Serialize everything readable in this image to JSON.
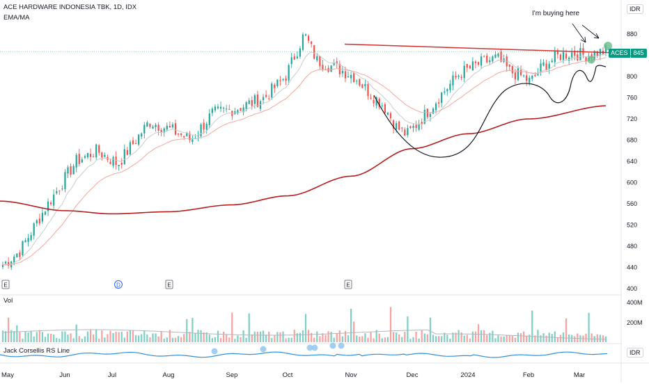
{
  "chart_data": {
    "type": "candlestick",
    "title": "ACE HARDWARE INDONESIA TBK, 1D, IDX",
    "indicator_label": "EMA/MA",
    "currency": "IDR",
    "price_axis": {
      "min": 400,
      "max": 880,
      "ticks": [
        880,
        840,
        800,
        760,
        720,
        680,
        640,
        600,
        560,
        520,
        480,
        440,
        400
      ]
    },
    "ticker_tag": {
      "symbol": "ACES",
      "price": "845"
    },
    "x_ticks": [
      "May",
      "Jun",
      "Jul",
      "Aug",
      "Sep",
      "Oct",
      "Nov",
      "Dec",
      "2024",
      "Feb",
      "Mar"
    ],
    "earnings_markers": [
      "E",
      "D",
      "E",
      "E"
    ],
    "volume_panel": {
      "label": "Vol",
      "ticks": [
        "400M",
        "200M"
      ]
    },
    "rs_panel": {
      "label": "Jack Corsellis RS Line",
      "currency": "IDR"
    },
    "annotation": "I'm buying here",
    "resistance_level": 845,
    "ma_long": [
      {
        "x": "May",
        "y": 565
      },
      {
        "x": "Jun",
        "y": 547
      },
      {
        "x": "Jul",
        "y": 541
      },
      {
        "x": "Aug",
        "y": 545
      },
      {
        "x": "Sep",
        "y": 558
      },
      {
        "x": "Oct",
        "y": 575
      },
      {
        "x": "Nov",
        "y": 612
      },
      {
        "x": "Dec",
        "y": 664
      },
      {
        "x": "2024",
        "y": 692
      },
      {
        "x": "Feb",
        "y": 720
      },
      {
        "x": "Mar",
        "y": 745
      }
    ]
  },
  "colors": {
    "up": "#26a69a",
    "down": "#ef5350",
    "ma_long": "#b71c1c",
    "ema_mid": "#f4a6a0",
    "ema_short": "#c8cccc",
    "resistance": "#d32f2f",
    "rs_line": "#2f8fd8",
    "tag": "#089981"
  }
}
